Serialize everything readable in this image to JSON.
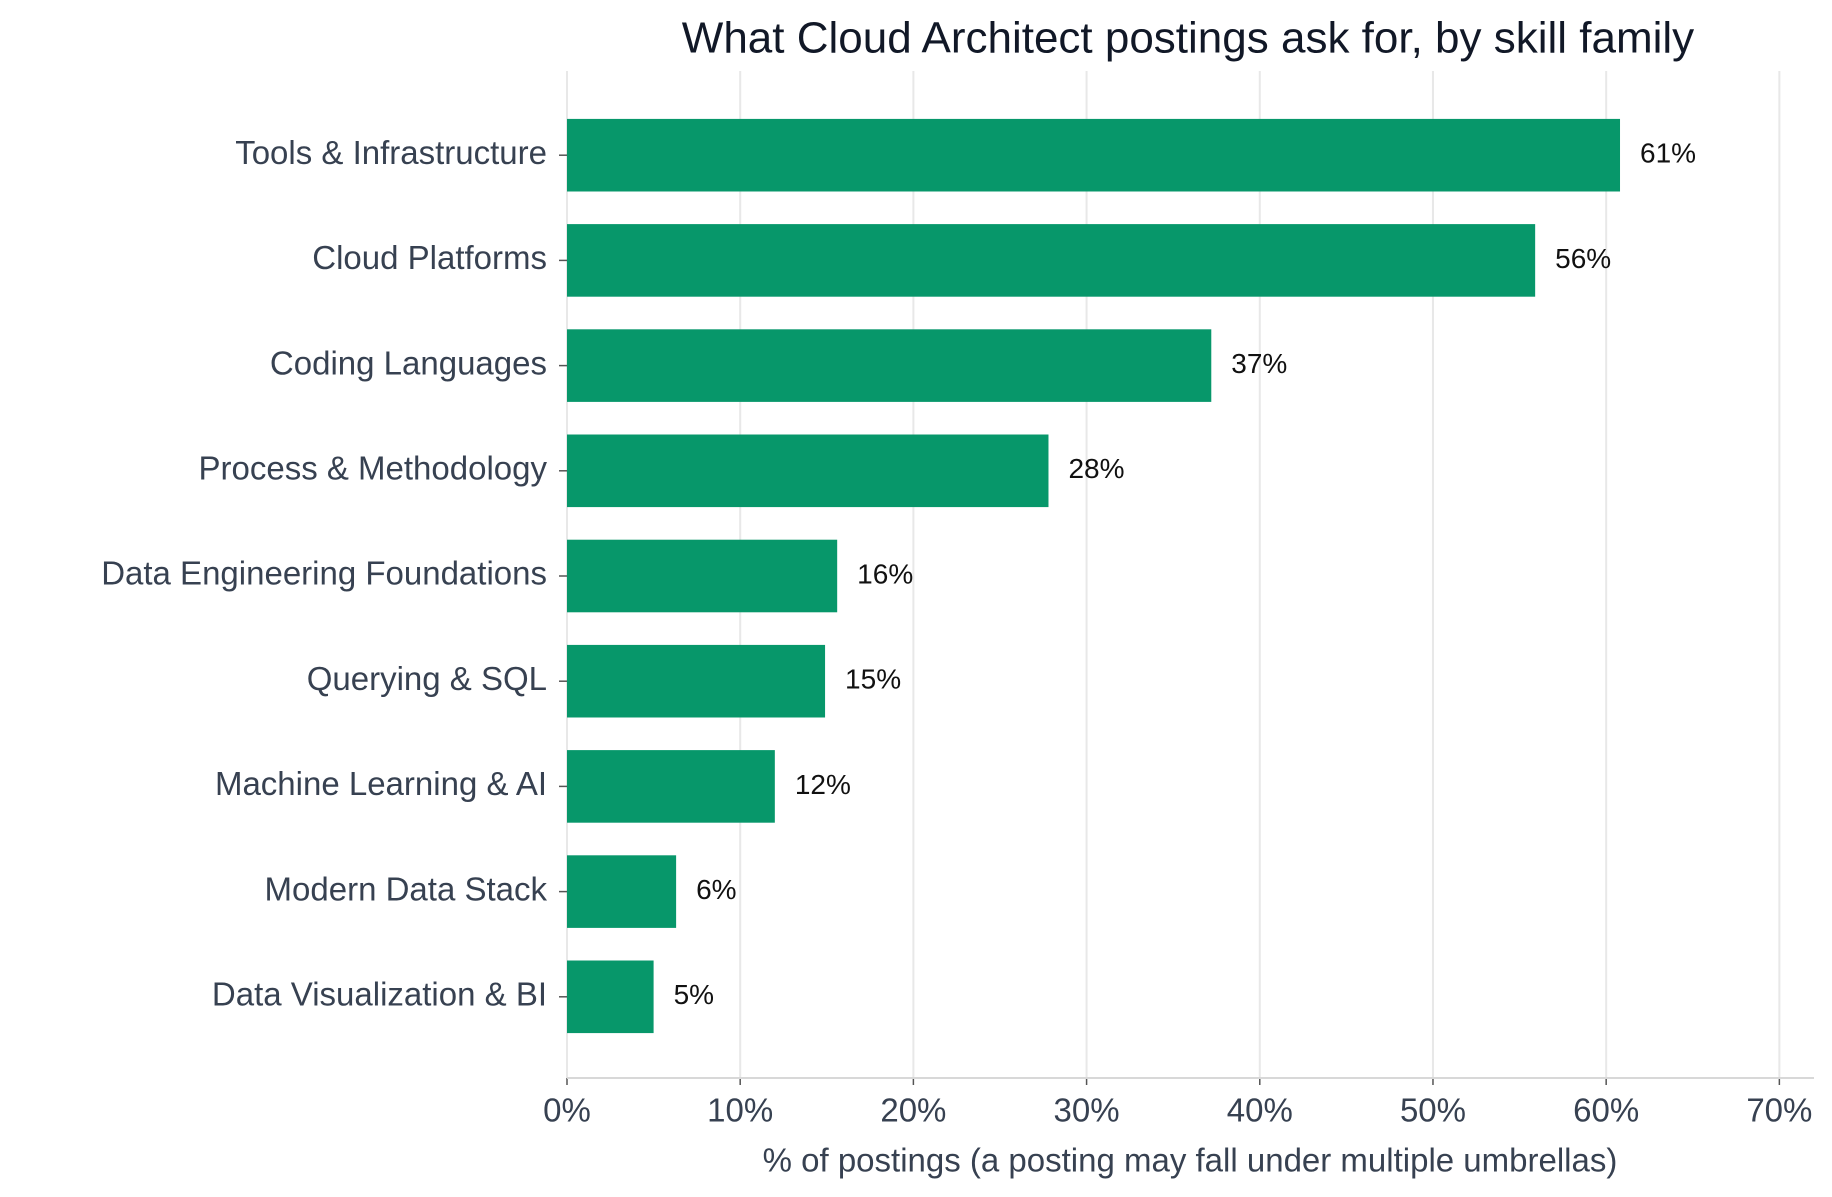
{
  "chart_data": {
    "type": "bar",
    "orientation": "horizontal",
    "title": "What Cloud Architect postings ask for, by skill family",
    "x_label": "% of postings (a posting may fall under multiple umbrellas)",
    "categories": [
      "Tools & Infrastructure",
      "Cloud Platforms",
      "Coding Languages",
      "Process & Methodology",
      "Data Engineering Foundations",
      "Querying & SQL",
      "Machine Learning & AI",
      "Modern Data Stack",
      "Data Visualization & BI"
    ],
    "values": [
      60.8,
      55.9,
      37.2,
      27.8,
      15.6,
      14.9,
      12.0,
      6.3,
      5.0
    ],
    "value_labels": [
      "61%",
      "56%",
      "37%",
      "28%",
      "16%",
      "15%",
      "12%",
      "6%",
      "5%"
    ],
    "color": "#07976a",
    "xlim": [
      0,
      72
    ],
    "xticks": [
      {
        "value": 0,
        "label": "0%"
      },
      {
        "value": 10,
        "label": "10%"
      },
      {
        "value": 20,
        "label": "20%"
      },
      {
        "value": 30,
        "label": "30%"
      },
      {
        "value": 40,
        "label": "40%"
      },
      {
        "value": 50,
        "label": "50%"
      },
      {
        "value": 60,
        "label": "60%"
      },
      {
        "value": 70,
        "label": "70%"
      }
    ],
    "grid": true
  }
}
